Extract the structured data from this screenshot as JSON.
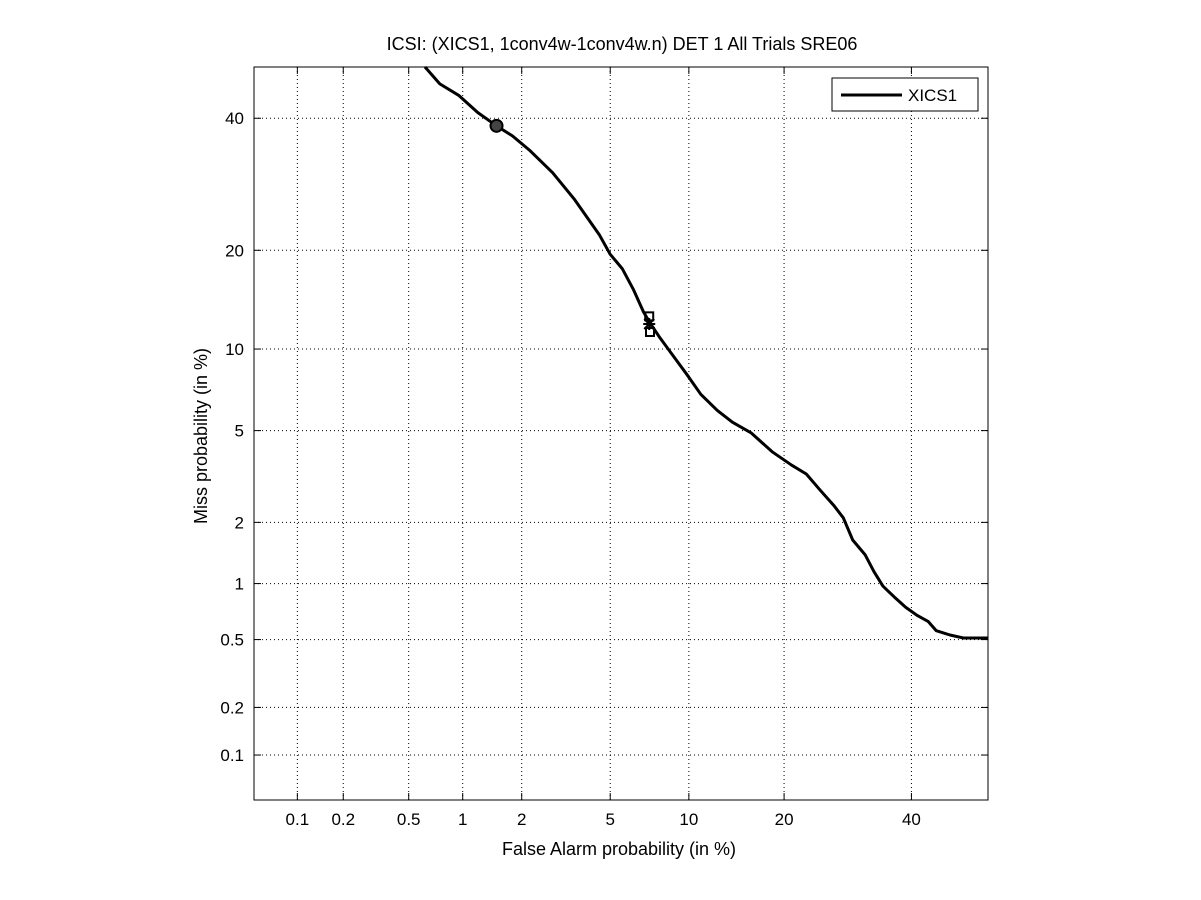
{
  "chart_data": {
    "type": "line",
    "title": "ICSI: (XICS1, 1conv4w-1conv4w.n) DET 1 All Trials SRE06",
    "xlabel": "False Alarm probability (in %)",
    "ylabel": "Miss probability (in %)",
    "xscale": "probit",
    "yscale": "probit",
    "xlim": [
      0.05,
      54
    ],
    "ylim": [
      0.05,
      49
    ],
    "x_ticks": [
      0.1,
      0.2,
      0.5,
      1,
      2,
      5,
      10,
      20,
      40
    ],
    "x_tick_labels": [
      "0.1",
      "0.2",
      "0.5",
      "1",
      "2",
      "5",
      "10",
      "20",
      "40"
    ],
    "y_ticks": [
      0.1,
      0.2,
      0.5,
      1,
      2,
      5,
      10,
      20,
      40
    ],
    "y_tick_labels": [
      "0.1",
      "0.2",
      "0.5",
      "1",
      "2",
      "5",
      "10",
      "20",
      "40"
    ],
    "grid": true,
    "legend": {
      "position": "top-right",
      "entries": [
        "XICS1"
      ]
    },
    "series": [
      {
        "name": "XICS1",
        "color": "#000000",
        "points": [
          [
            0.62,
            49
          ],
          [
            0.75,
            46
          ],
          [
            0.95,
            44
          ],
          [
            1.2,
            41
          ],
          [
            1.5,
            38.7
          ],
          [
            1.8,
            37
          ],
          [
            2.2,
            34.5
          ],
          [
            2.8,
            31
          ],
          [
            3.5,
            27
          ],
          [
            4.5,
            22
          ],
          [
            5.0,
            19.5
          ],
          [
            5.6,
            17.8
          ],
          [
            6.2,
            15.5
          ],
          [
            6.8,
            13.2
          ],
          [
            7.2,
            12.2
          ],
          [
            7.8,
            11.0
          ],
          [
            8.7,
            9.6
          ],
          [
            9.8,
            8.2
          ],
          [
            11,
            6.9
          ],
          [
            12.5,
            6.0
          ],
          [
            14,
            5.4
          ],
          [
            16,
            4.9
          ],
          [
            18.5,
            4.1
          ],
          [
            21,
            3.6
          ],
          [
            23,
            3.3
          ],
          [
            25,
            2.8
          ],
          [
            27,
            2.4
          ],
          [
            28.5,
            2.1
          ],
          [
            30,
            1.65
          ],
          [
            32,
            1.4
          ],
          [
            33.5,
            1.15
          ],
          [
            35,
            0.97
          ],
          [
            37,
            0.85
          ],
          [
            39,
            0.75
          ],
          [
            41,
            0.68
          ],
          [
            43,
            0.63
          ],
          [
            44.5,
            0.56
          ],
          [
            47,
            0.53
          ],
          [
            49.5,
            0.51
          ],
          [
            54,
            0.51
          ]
        ]
      }
    ],
    "markers": [
      {
        "shape": "circle",
        "x": 1.5,
        "y": 38.7
      },
      {
        "shape": "square",
        "x": 7.15,
        "y": 12.8
      },
      {
        "shape": "star",
        "x": 7.15,
        "y": 12.1
      },
      {
        "shape": "square",
        "x": 7.2,
        "y": 11.4
      }
    ]
  }
}
